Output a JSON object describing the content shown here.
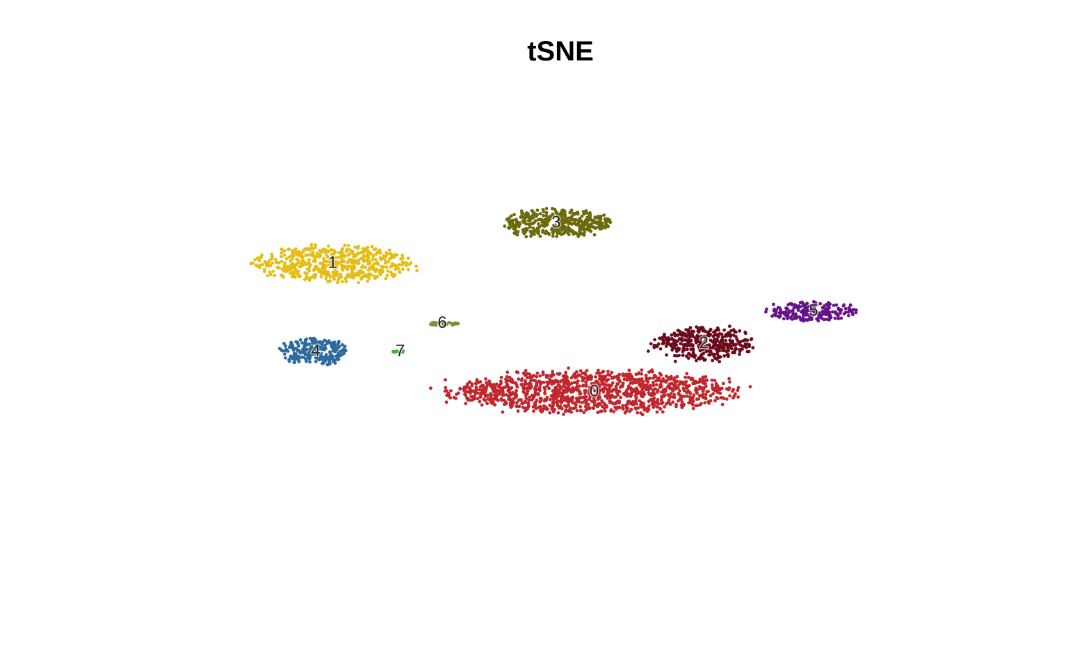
{
  "chart_data": {
    "type": "scatter",
    "title": "tSNE",
    "xlabel": "",
    "ylabel": "",
    "xlim": [
      -45,
      45
    ],
    "ylim": [
      -45,
      45
    ],
    "grid": false,
    "axes_visible": false,
    "legend": "none",
    "clusters": [
      {
        "label": "0",
        "color": "#c0272d",
        "center": [
          4,
          -18
        ],
        "spread": [
          16,
          5
        ],
        "count": 1200,
        "seed": 11
      },
      {
        "label": "1",
        "color": "#e6bd14",
        "center": [
          -27,
          14
        ],
        "spread": [
          9,
          4.2
        ],
        "count": 520,
        "seed": 23
      },
      {
        "label": "2",
        "color": "#6b0a1c",
        "center": [
          17,
          -6
        ],
        "spread": [
          5.5,
          4
        ],
        "count": 360,
        "seed": 37
      },
      {
        "label": "3",
        "color": "#6b6a0c",
        "center": [
          -0.5,
          24
        ],
        "spread": [
          6,
          3.3
        ],
        "count": 380,
        "seed": 41
      },
      {
        "label": "4",
        "color": "#2d6aa0",
        "center": [
          -29,
          -8
        ],
        "spread": [
          3.8,
          3.2
        ],
        "count": 240,
        "seed": 53
      },
      {
        "label": "5",
        "color": "#661387",
        "center": [
          30,
          2
        ],
        "spread": [
          5,
          2.2
        ],
        "count": 210,
        "seed": 67
      },
      {
        "label": "6",
        "color": "#8a8a3e",
        "center": [
          -14,
          -1
        ],
        "spread": [
          2.2,
          0.45
        ],
        "count": 32,
        "seed": 71
      },
      {
        "label": "7",
        "color": "#4caf42",
        "center": [
          -19,
          -8
        ],
        "spread": [
          0.9,
          0.25
        ],
        "count": 10,
        "seed": 83
      }
    ]
  }
}
